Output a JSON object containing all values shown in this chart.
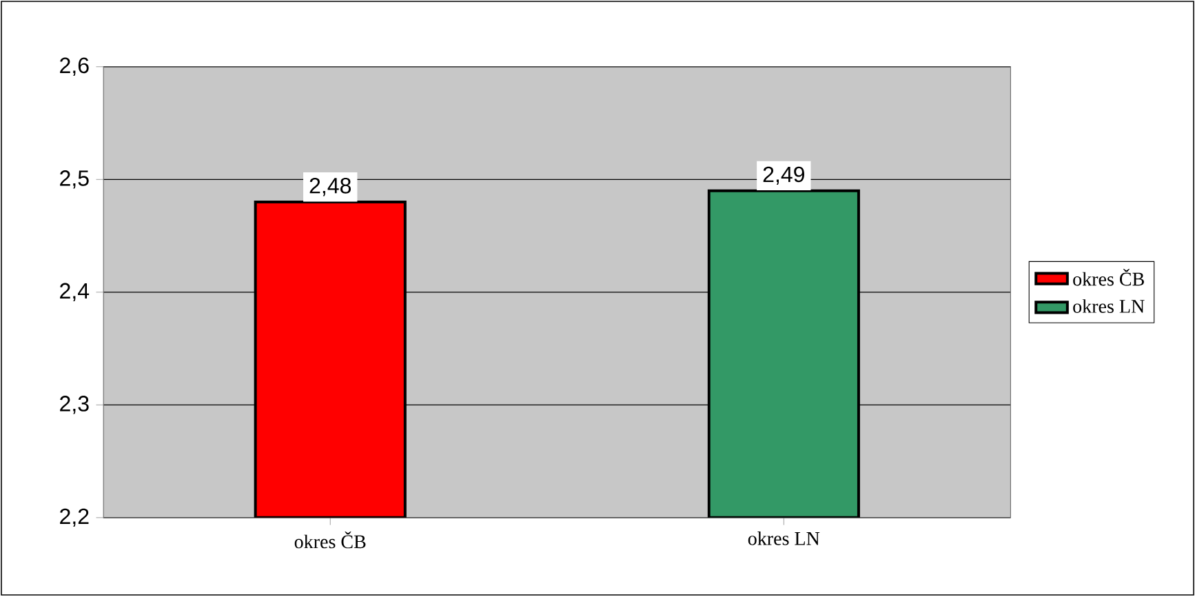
{
  "chart_data": {
    "type": "bar",
    "categories": [
      "okres ČB",
      "okres LN"
    ],
    "series": [
      {
        "name": "okres ČB",
        "color": "#ff0000",
        "values": [
          2.48,
          null
        ],
        "value_labels": [
          "2,48",
          null
        ]
      },
      {
        "name": "okres LN",
        "color": "#339966",
        "values": [
          null,
          2.49
        ],
        "value_labels": [
          null,
          "2,49"
        ]
      }
    ],
    "ylim": [
      2.2,
      2.6
    ],
    "yticks": [
      {
        "value": 2.2,
        "label": "2,2"
      },
      {
        "value": 2.3,
        "label": "2,3"
      },
      {
        "value": 2.4,
        "label": "2,4"
      },
      {
        "value": 2.5,
        "label": "2,5"
      },
      {
        "value": 2.6,
        "label": "2,6"
      }
    ],
    "grid": "y",
    "legend": "right"
  }
}
